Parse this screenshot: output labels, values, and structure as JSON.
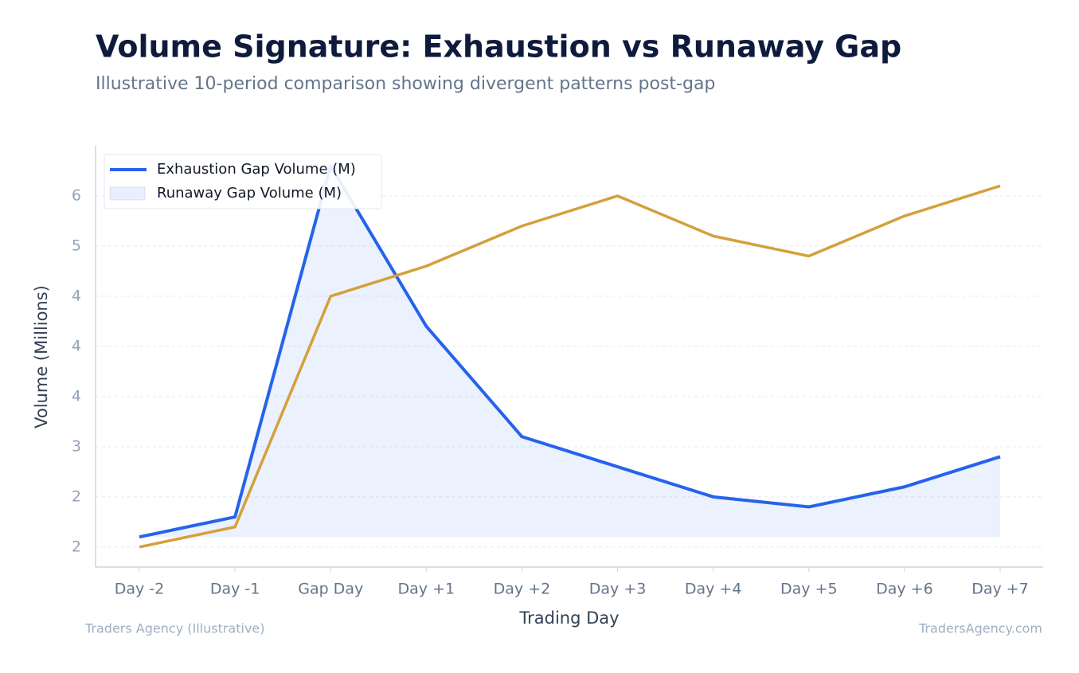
{
  "chart_data": {
    "type": "line",
    "title": "Volume Signature: Exhaustion vs Runaway Gap",
    "subtitle": "Illustrative 10-period comparison showing divergent patterns post-gap",
    "x_label": "Trading Day",
    "y_label": "Volume (Millions)",
    "categories": [
      "Day -2",
      "Day -1",
      "Gap Day",
      "Day +1",
      "Day +2",
      "Day +3",
      "Day +4",
      "Day +5",
      "Day +6",
      "Day +7"
    ],
    "series": [
      {
        "name": "Exhaustion Gap Volume (M)",
        "color": "#2563eb",
        "fill": true,
        "values": [
          2.1,
          2.3,
          5.8,
          4.2,
          3.1,
          2.8,
          2.5,
          2.4,
          2.6,
          2.9
        ]
      },
      {
        "name": "Runaway Gap Volume (M)",
        "color": "#d4a03a",
        "fill": false,
        "values": [
          2.0,
          2.2,
          4.5,
          4.8,
          5.2,
          5.5,
          5.1,
          4.9,
          5.3,
          5.6
        ]
      }
    ],
    "ylim": [
      1.8,
      6.0
    ],
    "yticks": [
      {
        "value": 2,
        "label": "2"
      },
      {
        "value": 2.5,
        "label": "2"
      },
      {
        "value": 3,
        "label": "3"
      },
      {
        "value": 3.5,
        "label": "4"
      },
      {
        "value": 4,
        "label": "4"
      },
      {
        "value": 4.5,
        "label": "4"
      },
      {
        "value": 5,
        "label": "5"
      },
      {
        "value": 5.5,
        "label": "6"
      }
    ],
    "grid": true,
    "legend": "top-left",
    "footer_left": "Traders Agency (Illustrative)",
    "footer_right": "TradersAgency.com"
  }
}
